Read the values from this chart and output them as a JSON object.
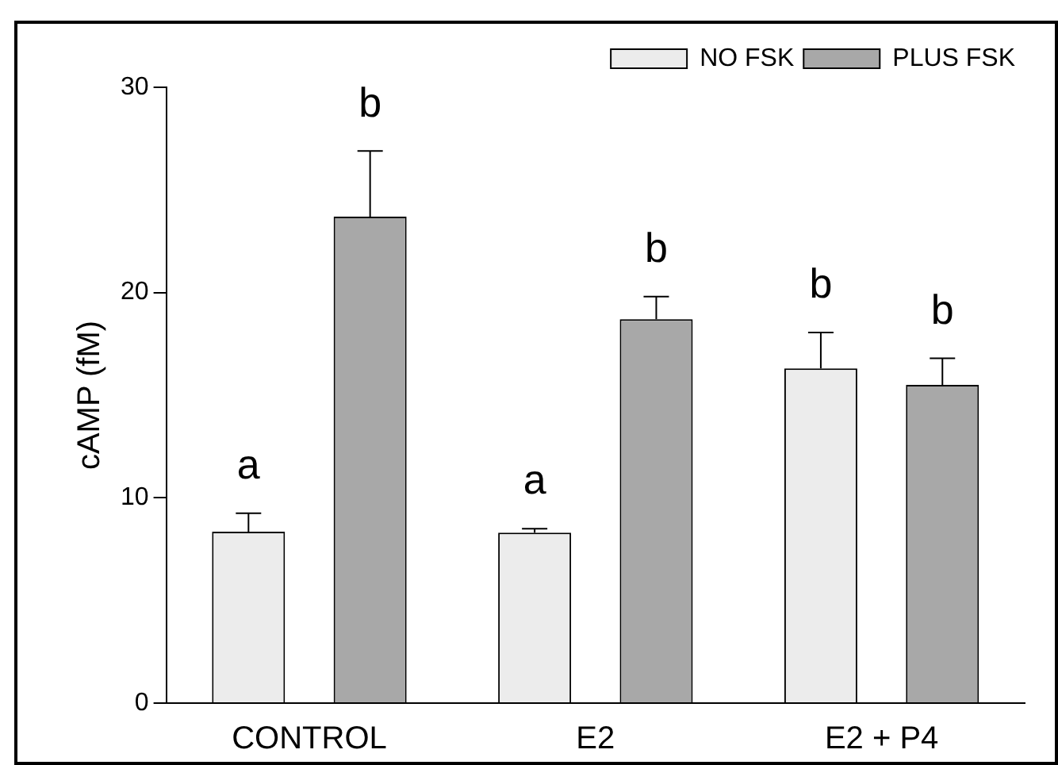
{
  "chart_data": {
    "type": "bar",
    "ylabel": "cAMP (fM)",
    "categories": [
      "CONTROL",
      "E2",
      "E2 + P4"
    ],
    "series": [
      {
        "name": "NO FSK",
        "color": "#ececec",
        "values": [
          8.35,
          8.3,
          16.3
        ],
        "errors": [
          [
            8.35,
            9.25
          ],
          [
            8.3,
            8.5
          ],
          [
            16.3,
            18.05
          ]
        ]
      },
      {
        "name": "PLUS FSK",
        "color": "#a8a8a8",
        "values": [
          23.7,
          18.7,
          15.5
        ],
        "errors": [
          [
            23.7,
            26.9
          ],
          [
            18.7,
            19.8
          ],
          [
            15.5,
            16.8
          ]
        ]
      }
    ],
    "annotations": [
      "a",
      "b",
      "a",
      "b",
      "b",
      "b"
    ],
    "ylim": [
      0,
      30
    ],
    "yticks": [
      0,
      10,
      20,
      30
    ],
    "grid": false,
    "legend": "top right"
  }
}
